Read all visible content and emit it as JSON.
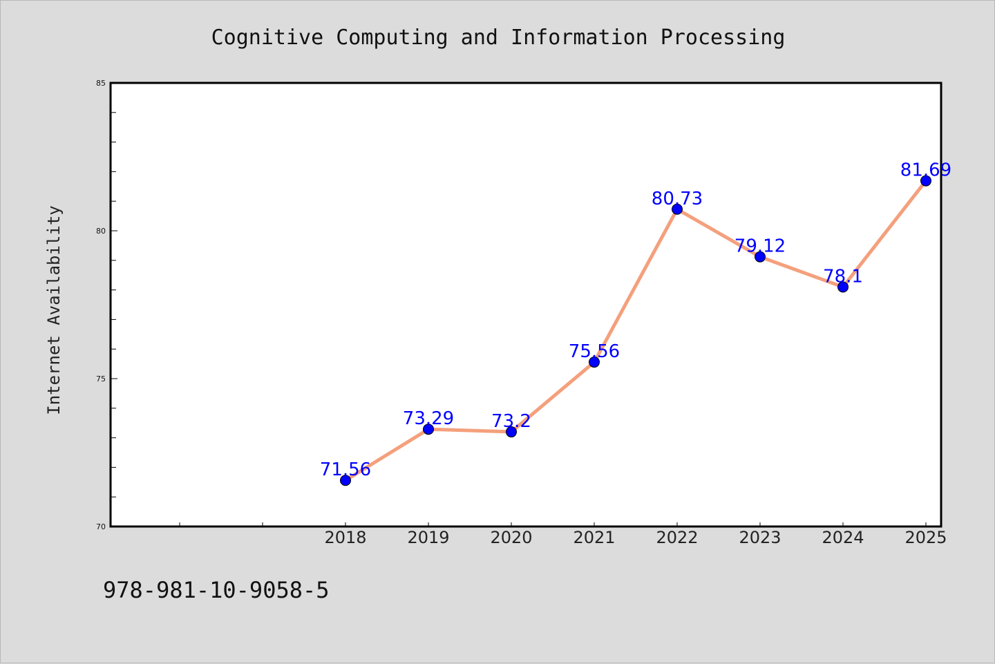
{
  "chart_data": {
    "type": "line",
    "title": "Cognitive Computing and Information Processing",
    "ylabel": "Internet Availability",
    "xlabel": "",
    "categories": [
      "2018",
      "2019",
      "2020",
      "2021",
      "2022",
      "2023",
      "2024",
      "2025"
    ],
    "series": [
      {
        "values": [
          71.56,
          73.29,
          73.2,
          75.56,
          80.73,
          79.12,
          78.1,
          81.69
        ],
        "data_labels": [
          "71.56",
          "73.29",
          "73.2",
          "75.56",
          "80.73",
          "79.12",
          "78.1",
          "81.69"
        ],
        "line_color": "#f4a07c",
        "marker_color": "#0000ff"
      }
    ],
    "ylim": [
      70,
      85
    ],
    "yticks": [
      "70",
      "75",
      "80",
      "85"
    ],
    "grid": false,
    "legend": "none"
  },
  "footer": {
    "isbn": "978-981-10-9058-5"
  }
}
